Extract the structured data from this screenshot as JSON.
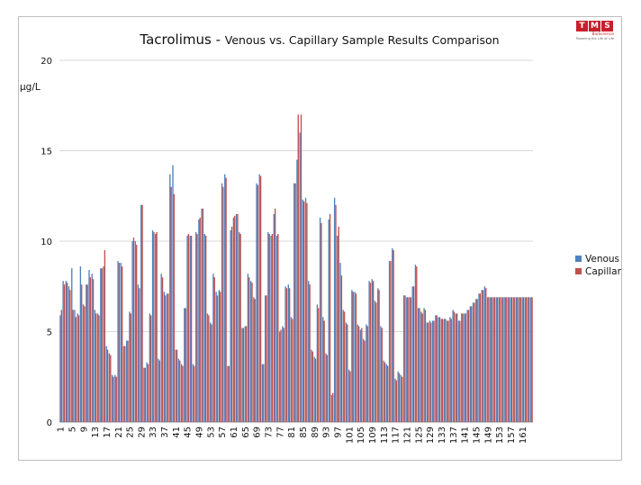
{
  "logo": {
    "letters": [
      "T",
      "M",
      "S"
    ],
    "subtitle": "BioScience",
    "tagline": "Powering the Life of Life"
  },
  "chart_data": {
    "type": "bar",
    "title_main": "Tacrolimus - ",
    "title_rest": "Venous vs. Capillary Sample Results Comparison",
    "ylabel": "µg/L",
    "xlabel": "",
    "y_ticks": [
      "0",
      "5",
      "10",
      "15",
      "20"
    ],
    "ylim": [
      0,
      20
    ],
    "grid": true,
    "legend_position": "right",
    "series": [
      {
        "name": "Venous",
        "color": "#4f81bd",
        "values": [
          5.9,
          7.8,
          7.8,
          7.5,
          8.5,
          6.2,
          6.0,
          8.6,
          6.5,
          7.6,
          8.4,
          8.2,
          6.2,
          6.0,
          8.5,
          8.6,
          4.2,
          3.8,
          2.6,
          2.6,
          8.9,
          8.8,
          4.2,
          4.5,
          6.1,
          10.0,
          10.0,
          7.6,
          12.0,
          3.0,
          3.3,
          6.0,
          10.6,
          10.4,
          3.5,
          8.2,
          7.2,
          7.1,
          13.7,
          14.2,
          4.0,
          3.5,
          3.2,
          6.3,
          10.3,
          10.3,
          3.2,
          10.5,
          11.2,
          11.8,
          10.4,
          6.0,
          5.5,
          8.2,
          7.2,
          7.3,
          13.2,
          13.7,
          3.1,
          10.6,
          11.3,
          11.5,
          10.5,
          5.2,
          5.3,
          8.2,
          7.8,
          6.9,
          13.2,
          13.7,
          3.2,
          7.0,
          10.5,
          10.3,
          11.5,
          10.3,
          5.0,
          5.3,
          7.5,
          7.6,
          5.8,
          13.2,
          14.5,
          16.0,
          12.3,
          12.4,
          7.8,
          4.0,
          3.6,
          6.5,
          11.3,
          5.8,
          3.8,
          11.2,
          1.5,
          12.4,
          10.3,
          8.8,
          6.2,
          5.5,
          2.9,
          7.3,
          7.2,
          5.4,
          5.1,
          4.6,
          5.4,
          7.8,
          7.9,
          6.7,
          7.4,
          5.3,
          3.4,
          3.2,
          8.9,
          9.6,
          2.4,
          2.8,
          2.6,
          7.0,
          6.9,
          6.9,
          7.5,
          8.7,
          6.3,
          6.1,
          6.3,
          5.5,
          5.6,
          5.6,
          5.9,
          5.8,
          5.7,
          5.7,
          5.6,
          5.8,
          6.2,
          6.0,
          5.6,
          6.0,
          6.0,
          6.2,
          6.4,
          6.6,
          6.8,
          7.1,
          7.3,
          7.5,
          6.9,
          6.9,
          6.9,
          6.9,
          6.9,
          6.9,
          6.9,
          6.9,
          6.9,
          6.9,
          6.9,
          6.9,
          6.9,
          6.9,
          6.9,
          6.9
        ]
      },
      {
        "name": "Capillar",
        "color": "#c0504d",
        "values": [
          6.2,
          7.6,
          7.7,
          7.3,
          6.2,
          5.8,
          5.9,
          7.6,
          6.4,
          7.6,
          8.0,
          7.9,
          6.0,
          5.9,
          8.5,
          9.5,
          4.0,
          3.7,
          2.5,
          2.5,
          8.8,
          8.6,
          4.2,
          4.5,
          6.0,
          10.2,
          9.8,
          7.4,
          12.0,
          3.0,
          3.2,
          5.9,
          10.5,
          10.5,
          3.4,
          8.0,
          7.0,
          7.1,
          13.0,
          12.6,
          4.0,
          3.4,
          3.1,
          6.3,
          10.4,
          10.3,
          3.1,
          10.4,
          11.3,
          11.8,
          10.3,
          5.9,
          5.4,
          8.0,
          7.0,
          7.2,
          13.0,
          13.5,
          3.1,
          10.8,
          11.4,
          11.5,
          10.4,
          5.2,
          5.3,
          8.0,
          7.7,
          6.8,
          13.1,
          13.6,
          3.2,
          7.0,
          10.4,
          10.4,
          11.8,
          10.4,
          5.1,
          5.2,
          7.4,
          7.4,
          5.7,
          13.2,
          17.0,
          17.0,
          12.2,
          12.1,
          7.6,
          3.9,
          3.5,
          6.3,
          11.0,
          5.6,
          3.7,
          11.5,
          1.6,
          12.0,
          10.8,
          8.1,
          6.1,
          5.4,
          2.8,
          7.2,
          7.1,
          5.3,
          5.2,
          4.5,
          5.3,
          7.7,
          7.8,
          6.6,
          7.3,
          5.2,
          3.3,
          3.1,
          8.9,
          9.5,
          2.3,
          2.7,
          2.5,
          7.0,
          6.9,
          6.9,
          7.5,
          8.6,
          6.3,
          6.0,
          6.2,
          5.5,
          5.5,
          5.6,
          5.9,
          5.8,
          5.7,
          5.7,
          5.6,
          5.7,
          6.1,
          6.0,
          5.6,
          6.0,
          6.0,
          6.2,
          6.4,
          6.6,
          6.8,
          7.1,
          7.3,
          7.4,
          6.9,
          6.9,
          6.9,
          6.9,
          6.9,
          6.9,
          6.9,
          6.9,
          6.9,
          6.9,
          6.9,
          6.9,
          6.9,
          6.9,
          6.9,
          6.9
        ]
      }
    ],
    "x_label_start": 1,
    "x_label_step": 4,
    "x_labels": [
      "1",
      "5",
      "9",
      "13",
      "17",
      "21",
      "25",
      "29",
      "33",
      "37",
      "41",
      "45",
      "49",
      "53",
      "57",
      "61",
      "65",
      "69",
      "73",
      "77",
      "81",
      "85",
      "89",
      "93",
      "97",
      "101",
      "105",
      "109",
      "113",
      "117",
      "121",
      "125",
      "129",
      "133",
      "137",
      "141",
      "145",
      "149",
      "153",
      "157",
      "161"
    ]
  }
}
